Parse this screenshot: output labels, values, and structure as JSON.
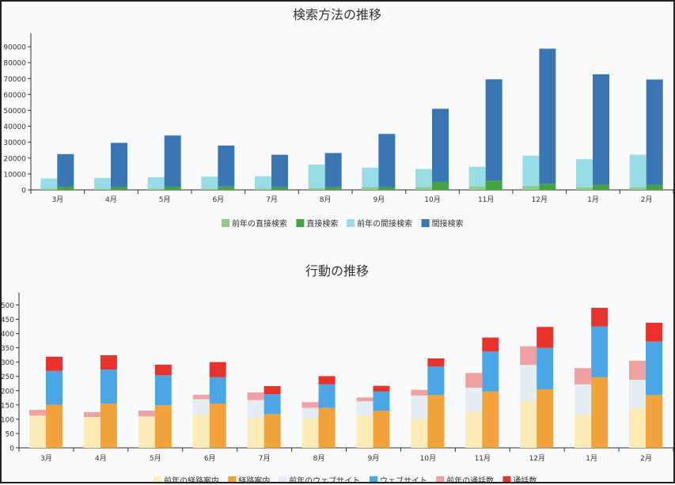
{
  "colors": {
    "prev_direct": "#8fcc8c",
    "direct": "#47a342",
    "prev_indirect": "#98dde5",
    "indirect": "#3a76b3",
    "prev_route": "#fdebb8",
    "route": "#f1a23a",
    "prev_web": "#e3edf3",
    "web": "#4aa6e4",
    "prev_call": "#f0a1a1",
    "call": "#e8322c"
  },
  "chart_data": [
    {
      "type": "bar",
      "title": "検索方法の推移",
      "categories": [
        "3月",
        "4月",
        "5月",
        "6月",
        "7月",
        "8月",
        "9月",
        "10月",
        "11月",
        "12月",
        "1月",
        "2月"
      ],
      "ylim": [
        0,
        98000
      ],
      "yticks": [
        0,
        10000,
        20000,
        30000,
        40000,
        50000,
        60000,
        70000,
        80000,
        90000
      ],
      "grid": false,
      "legend_position": "bottom",
      "groups": [
        {
          "stack": "previous",
          "series": [
            {
              "name": "前年の直接検索",
              "color_key": "prev_direct",
              "values": [
                800,
                700,
                800,
                900,
                800,
                1100,
                1800,
                1800,
                2200,
                2500,
                1600,
                1600
              ]
            },
            {
              "name": "前年の間接検索",
              "color_key": "prev_indirect",
              "values": [
                6400,
                6800,
                7200,
                7500,
                7800,
                14800,
                12200,
                11300,
                12300,
                19000,
                17700,
                20600
              ]
            }
          ]
        },
        {
          "stack": "current",
          "series": [
            {
              "name": "直接検索",
              "color_key": "direct",
              "values": [
                2000,
                1800,
                2000,
                2100,
                1700,
                1700,
                1700,
                5000,
                5800,
                3800,
                3200,
                3200
              ]
            },
            {
              "name": "間接検索",
              "color_key": "indirect",
              "values": [
                20500,
                27800,
                32200,
                25800,
                20400,
                21500,
                33500,
                46000,
                63700,
                85000,
                69500,
                66200
              ]
            }
          ]
        }
      ]
    },
    {
      "type": "bar",
      "title": "行動の推移",
      "categories": [
        "3月",
        "4月",
        "5月",
        "6月",
        "7月",
        "8月",
        "9月",
        "10月",
        "11月",
        "12月",
        "1月",
        "2月"
      ],
      "ylim": [
        0,
        540
      ],
      "yticks": [
        0,
        50,
        100,
        150,
        200,
        250,
        300,
        350,
        400,
        450,
        500
      ],
      "ytick_labels": [
        "0",
        "50",
        "100",
        "150",
        "200",
        "250",
        "300",
        "350",
        "400",
        "450",
        "500"
      ],
      "grid": false,
      "legend_position": "bottom",
      "groups": [
        {
          "stack": "previous",
          "series": [
            {
              "name": "前年の経路案内",
              "color_key": "prev_route",
              "values": [
                113,
                108,
                110,
                115,
                105,
                103,
                113,
                103,
                127,
                162,
                115,
                138
              ]
            },
            {
              "name": "前年のウェブサイト",
              "color_key": "prev_web",
              "values": [
                0,
                0,
                0,
                55,
                62,
                37,
                50,
                80,
                83,
                128,
                107,
                100
              ]
            },
            {
              "name": "前年の通話数",
              "color_key": "prev_call",
              "values": [
                20,
                17,
                20,
                16,
                27,
                20,
                13,
                20,
                52,
                65,
                57,
                67
              ]
            }
          ]
        },
        {
          "stack": "current",
          "series": [
            {
              "name": "経路案内",
              "color_key": "route",
              "values": [
                151,
                155,
                149,
                155,
                118,
                140,
                130,
                185,
                197,
                205,
                247,
                185
              ]
            },
            {
              "name": "ウェブサイト",
              "color_key": "web",
              "values": [
                118,
                119,
                105,
                92,
                70,
                82,
                67,
                100,
                140,
                145,
                178,
                187
              ]
            },
            {
              "name": "通話数",
              "color_key": "call",
              "values": [
                50,
                50,
                37,
                53,
                28,
                29,
                20,
                28,
                49,
                73,
                65,
                66
              ]
            }
          ]
        }
      ]
    }
  ]
}
